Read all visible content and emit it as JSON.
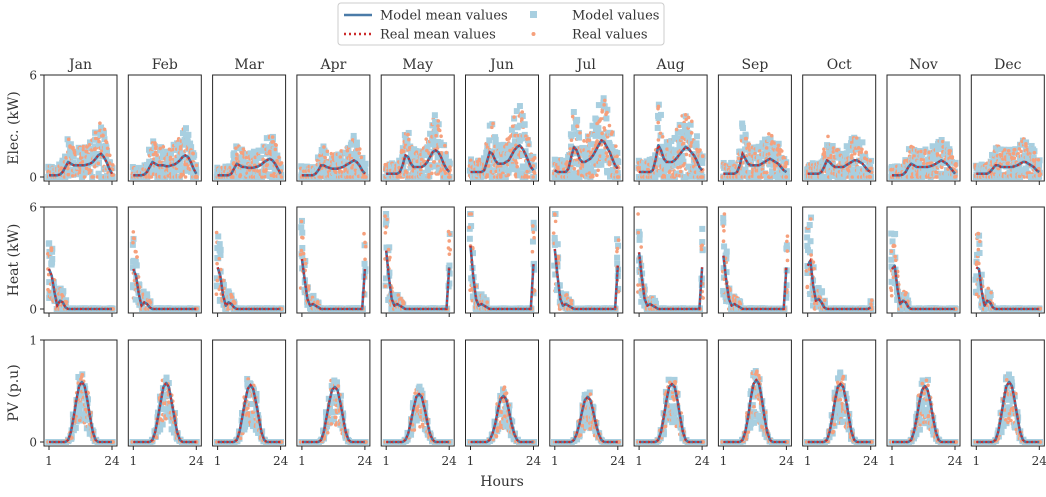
{
  "chart_data": {
    "type": "scatter",
    "title": "",
    "xlabel": "Hours",
    "x_ticks": [
      "1",
      "24"
    ],
    "xlim": [
      1,
      24
    ],
    "grid": false,
    "legend_placement": "top-center",
    "legend": [
      {
        "name": "Model mean values",
        "kind": "line",
        "color": "#4a7ba8"
      },
      {
        "name": "Model values",
        "kind": "marker",
        "color": "#a8cfe0"
      },
      {
        "name": "Real mean values",
        "kind": "dotted-line",
        "color": "#cc2b2b"
      },
      {
        "name": "Real values",
        "kind": "marker",
        "color": "#f6a07c"
      }
    ],
    "months": [
      "Jan",
      "Feb",
      "Mar",
      "Apr",
      "May",
      "Jun",
      "Jul",
      "Aug",
      "Sep",
      "Oct",
      "Nov",
      "Dec"
    ],
    "rows": [
      {
        "ylabel": "Elec. (kW)",
        "ylim": [
          0,
          6
        ],
        "y_ticks": [
          "0",
          "6"
        ],
        "mean_profiles": [
          [
            0.1,
            0.1,
            0.1,
            0.1,
            0.15,
            0.3,
            0.6,
            0.9,
            0.8,
            0.7,
            0.7,
            0.7,
            0.7,
            0.7,
            0.75,
            0.8,
            0.9,
            1.1,
            1.3,
            1.4,
            1.2,
            0.9,
            0.5,
            0.2
          ],
          [
            0.1,
            0.1,
            0.1,
            0.1,
            0.15,
            0.3,
            0.6,
            0.9,
            0.8,
            0.7,
            0.7,
            0.7,
            0.65,
            0.65,
            0.7,
            0.75,
            0.85,
            1.0,
            1.2,
            1.3,
            1.2,
            0.9,
            0.5,
            0.2
          ],
          [
            0.1,
            0.1,
            0.1,
            0.1,
            0.1,
            0.2,
            0.5,
            0.8,
            0.7,
            0.6,
            0.6,
            0.55,
            0.55,
            0.55,
            0.6,
            0.65,
            0.75,
            0.9,
            1.0,
            1.1,
            1.0,
            0.8,
            0.5,
            0.2
          ],
          [
            0.1,
            0.1,
            0.1,
            0.1,
            0.1,
            0.2,
            0.4,
            0.7,
            0.7,
            0.6,
            0.55,
            0.5,
            0.5,
            0.5,
            0.55,
            0.6,
            0.7,
            0.8,
            0.9,
            1.0,
            0.9,
            0.7,
            0.4,
            0.2
          ],
          [
            0.2,
            0.2,
            0.2,
            0.2,
            0.2,
            0.3,
            0.7,
            1.3,
            1.2,
            0.8,
            0.6,
            0.6,
            0.6,
            0.6,
            0.7,
            0.9,
            1.2,
            1.5,
            1.6,
            1.5,
            1.2,
            0.8,
            0.5,
            0.3
          ],
          [
            0.3,
            0.3,
            0.3,
            0.3,
            0.3,
            0.4,
            0.9,
            1.5,
            1.4,
            1.0,
            0.8,
            0.8,
            0.8,
            0.9,
            1.0,
            1.3,
            1.6,
            1.8,
            1.9,
            1.7,
            1.4,
            1.0,
            0.6,
            0.4
          ],
          [
            0.4,
            0.3,
            0.3,
            0.3,
            0.3,
            0.5,
            1.2,
            1.8,
            1.6,
            1.1,
            0.9,
            0.9,
            1.0,
            1.1,
            1.3,
            1.6,
            1.9,
            2.2,
            2.1,
            1.8,
            1.5,
            1.1,
            0.7,
            0.5
          ],
          [
            0.3,
            0.3,
            0.3,
            0.3,
            0.3,
            0.4,
            1.0,
            1.9,
            1.6,
            1.1,
            0.9,
            0.9,
            0.9,
            1.0,
            1.2,
            1.4,
            1.6,
            1.8,
            1.7,
            1.5,
            1.3,
            1.0,
            0.6,
            0.4
          ],
          [
            0.2,
            0.2,
            0.2,
            0.2,
            0.2,
            0.3,
            0.7,
            1.4,
            1.1,
            0.8,
            0.7,
            0.7,
            0.7,
            0.7,
            0.8,
            0.9,
            1.0,
            1.1,
            1.0,
            0.9,
            0.8,
            0.6,
            0.4,
            0.3
          ],
          [
            0.2,
            0.2,
            0.2,
            0.2,
            0.2,
            0.3,
            0.6,
            1.0,
            0.9,
            0.7,
            0.6,
            0.6,
            0.6,
            0.6,
            0.7,
            0.8,
            0.9,
            1.0,
            1.0,
            0.9,
            0.8,
            0.6,
            0.4,
            0.3
          ],
          [
            0.1,
            0.1,
            0.1,
            0.1,
            0.15,
            0.3,
            0.6,
            0.8,
            0.7,
            0.6,
            0.6,
            0.6,
            0.6,
            0.6,
            0.65,
            0.7,
            0.8,
            0.9,
            1.0,
            0.9,
            0.8,
            0.6,
            0.4,
            0.2
          ],
          [
            0.2,
            0.2,
            0.2,
            0.2,
            0.2,
            0.3,
            0.5,
            0.7,
            0.7,
            0.6,
            0.6,
            0.6,
            0.6,
            0.6,
            0.65,
            0.7,
            0.8,
            0.9,
            0.9,
            0.8,
            0.7,
            0.6,
            0.4,
            0.3
          ]
        ]
      },
      {
        "ylabel": "Heat (kW)",
        "ylim": [
          0,
          6
        ],
        "y_ticks": [
          "0",
          "6"
        ],
        "mean_profiles": [
          [
            2.4,
            2.0,
            1.0,
            0.2,
            0.5,
            0.4,
            0.1,
            0,
            0,
            0,
            0,
            0,
            0,
            0,
            0,
            0,
            0,
            0,
            0,
            0,
            0,
            0,
            0,
            0
          ],
          [
            2.4,
            2.0,
            0.9,
            0.2,
            0.4,
            0.3,
            0.1,
            0,
            0,
            0,
            0,
            0,
            0,
            0,
            0,
            0,
            0,
            0,
            0,
            0,
            0,
            0,
            0,
            0
          ],
          [
            2.5,
            2.0,
            0.8,
            0.2,
            0.4,
            0.3,
            0.1,
            0,
            0,
            0,
            0,
            0,
            0,
            0,
            0,
            0,
            0,
            0,
            0,
            0,
            0,
            0,
            0,
            0
          ],
          [
            3.0,
            1.8,
            0.6,
            0.2,
            0.3,
            0.2,
            0.1,
            0,
            0,
            0,
            0,
            0,
            0,
            0,
            0,
            0,
            0,
            0,
            0,
            0,
            0,
            0,
            0,
            2.4
          ],
          [
            3.5,
            1.9,
            0.6,
            0.2,
            0.3,
            0.2,
            0.1,
            0,
            0,
            0,
            0,
            0,
            0,
            0,
            0,
            0,
            0,
            0,
            0,
            0,
            0,
            0,
            0,
            2.5
          ],
          [
            3.8,
            2.0,
            0.6,
            0.2,
            0.3,
            0.2,
            0.1,
            0,
            0,
            0,
            0,
            0,
            0,
            0,
            0,
            0,
            0,
            0,
            0,
            0,
            0,
            0,
            0,
            2.7
          ],
          [
            3.6,
            2.0,
            0.6,
            0.2,
            0.3,
            0.2,
            0.1,
            0,
            0,
            0,
            0,
            0,
            0,
            0,
            0,
            0,
            0,
            0,
            0,
            0,
            0,
            0,
            0,
            2.6
          ],
          [
            3.4,
            1.9,
            0.6,
            0.2,
            0.3,
            0.2,
            0.1,
            0,
            0,
            0,
            0,
            0,
            0,
            0,
            0,
            0,
            0,
            0,
            0,
            0,
            0,
            0,
            0,
            2.5
          ],
          [
            3.2,
            1.8,
            0.6,
            0.2,
            0.3,
            0.2,
            0.1,
            0,
            0,
            0,
            0,
            0,
            0,
            0,
            0,
            0,
            0,
            0,
            0,
            0,
            0,
            0,
            0,
            2.5
          ],
          [
            2.6,
            2.9,
            1.4,
            0.5,
            0.6,
            0.4,
            0.1,
            0,
            0,
            0,
            0,
            0,
            0,
            0,
            0,
            0,
            0,
            0,
            0,
            0,
            0,
            0,
            0,
            0.1
          ],
          [
            2.4,
            2.6,
            1.2,
            0.3,
            0.5,
            0.4,
            0.1,
            0,
            0,
            0,
            0,
            0,
            0,
            0,
            0,
            0,
            0,
            0,
            0,
            0,
            0,
            0,
            0,
            0
          ],
          [
            2.5,
            2.4,
            1.0,
            0.2,
            0.5,
            0.4,
            0.1,
            0,
            0,
            0,
            0,
            0,
            0,
            0,
            0,
            0,
            0,
            0,
            0,
            0,
            0,
            0,
            0,
            0
          ]
        ]
      },
      {
        "ylabel": "PV (p.u)",
        "ylim": [
          0,
          1
        ],
        "y_ticks": [
          "0",
          "1"
        ],
        "mean_profiles": [
          [
            0,
            0,
            0,
            0,
            0,
            0,
            0,
            0.02,
            0.1,
            0.25,
            0.42,
            0.56,
            0.6,
            0.56,
            0.42,
            0.25,
            0.1,
            0.02,
            0,
            0,
            0,
            0,
            0,
            0
          ],
          [
            0,
            0,
            0,
            0,
            0,
            0,
            0,
            0.02,
            0.1,
            0.25,
            0.4,
            0.55,
            0.59,
            0.55,
            0.4,
            0.25,
            0.1,
            0.02,
            0,
            0,
            0,
            0,
            0,
            0
          ],
          [
            0,
            0,
            0,
            0,
            0,
            0,
            0,
            0.02,
            0.1,
            0.25,
            0.4,
            0.53,
            0.57,
            0.53,
            0.4,
            0.25,
            0.1,
            0.02,
            0,
            0,
            0,
            0,
            0,
            0
          ],
          [
            0,
            0,
            0,
            0,
            0,
            0,
            0,
            0.02,
            0.1,
            0.25,
            0.4,
            0.52,
            0.55,
            0.52,
            0.4,
            0.25,
            0.1,
            0.02,
            0,
            0,
            0,
            0,
            0,
            0
          ],
          [
            0,
            0,
            0,
            0,
            0,
            0,
            0,
            0.02,
            0.08,
            0.2,
            0.34,
            0.45,
            0.48,
            0.45,
            0.34,
            0.2,
            0.08,
            0.02,
            0,
            0,
            0,
            0,
            0,
            0
          ],
          [
            0,
            0,
            0,
            0,
            0,
            0,
            0,
            0.02,
            0.08,
            0.18,
            0.32,
            0.43,
            0.46,
            0.43,
            0.32,
            0.18,
            0.08,
            0.02,
            0,
            0,
            0,
            0,
            0,
            0
          ],
          [
            0,
            0,
            0,
            0,
            0,
            0,
            0,
            0.02,
            0.08,
            0.18,
            0.31,
            0.42,
            0.45,
            0.42,
            0.31,
            0.18,
            0.08,
            0.02,
            0,
            0,
            0,
            0,
            0,
            0
          ],
          [
            0,
            0,
            0,
            0,
            0,
            0,
            0,
            0.02,
            0.1,
            0.25,
            0.42,
            0.55,
            0.58,
            0.55,
            0.42,
            0.25,
            0.1,
            0.02,
            0,
            0,
            0,
            0,
            0,
            0
          ],
          [
            0,
            0,
            0,
            0,
            0,
            0,
            0,
            0.02,
            0.1,
            0.25,
            0.44,
            0.58,
            0.62,
            0.58,
            0.44,
            0.25,
            0.1,
            0.02,
            0,
            0,
            0,
            0,
            0,
            0
          ],
          [
            0,
            0,
            0,
            0,
            0,
            0,
            0,
            0.02,
            0.1,
            0.25,
            0.42,
            0.55,
            0.58,
            0.55,
            0.42,
            0.25,
            0.1,
            0.02,
            0,
            0,
            0,
            0,
            0,
            0
          ],
          [
            0,
            0,
            0,
            0,
            0,
            0,
            0,
            0.02,
            0.1,
            0.24,
            0.4,
            0.52,
            0.56,
            0.52,
            0.4,
            0.24,
            0.1,
            0.02,
            0,
            0,
            0,
            0,
            0,
            0
          ],
          [
            0,
            0,
            0,
            0,
            0,
            0,
            0,
            0.02,
            0.1,
            0.25,
            0.42,
            0.56,
            0.6,
            0.56,
            0.42,
            0.25,
            0.1,
            0.02,
            0,
            0,
            0,
            0,
            0,
            0
          ]
        ]
      }
    ]
  }
}
